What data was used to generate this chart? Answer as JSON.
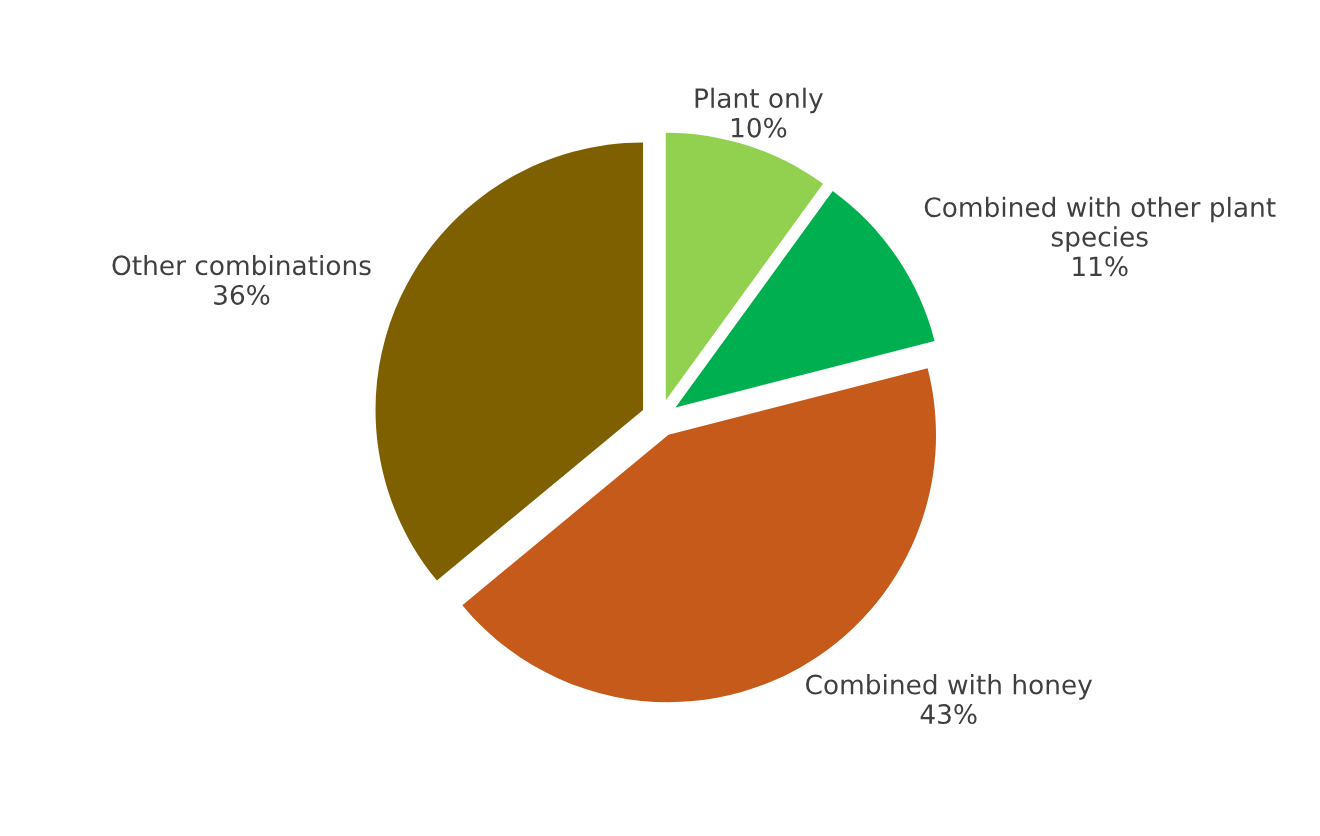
{
  "chart_data": {
    "type": "pie",
    "categories": [
      "Plant only",
      "Combined with other plant species",
      "Combined with honey",
      "Other combinations"
    ],
    "values": [
      10,
      11,
      43,
      36
    ],
    "value_labels": [
      "10%",
      "11%",
      "43%",
      "36%"
    ],
    "colors": [
      "#92d050",
      "#00b050",
      "#c55a1a",
      "#7f6000"
    ],
    "legend": false
  }
}
